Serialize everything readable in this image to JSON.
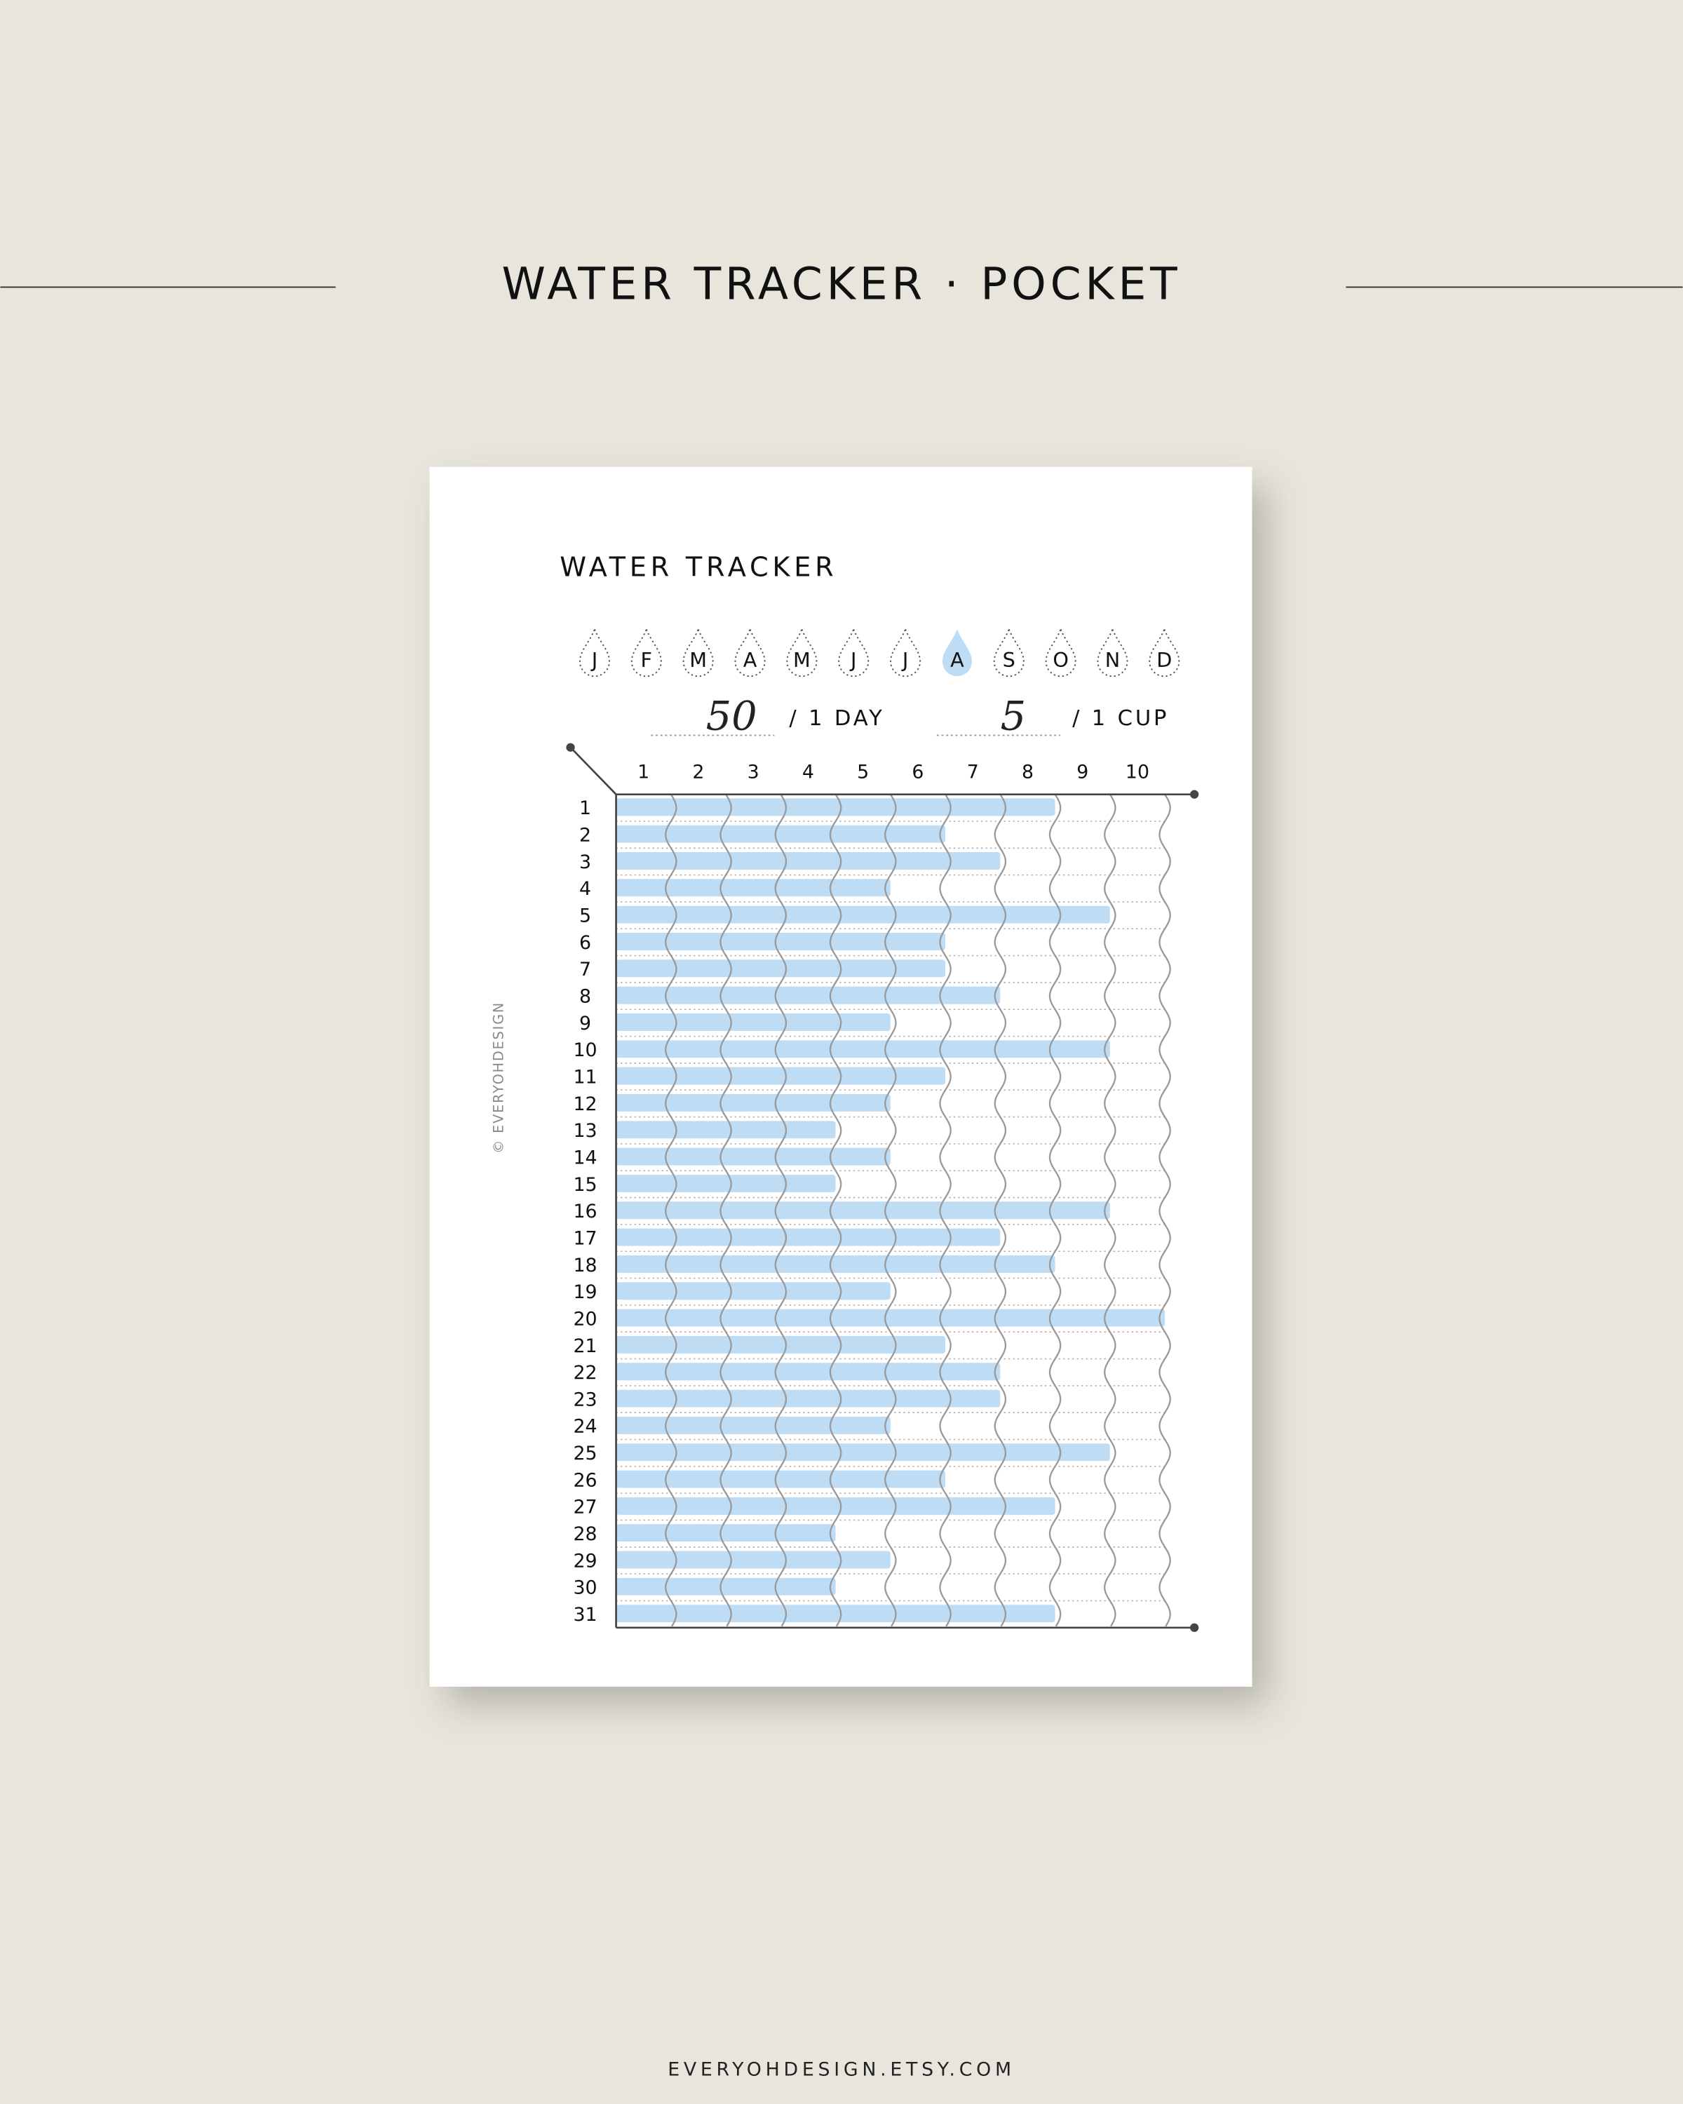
{
  "banner_title": "WATER TRACKER · POCKET",
  "footer": "EVERYOHDESIGN.ETSY.COM",
  "copyright": "© EVERYOHDESIGN",
  "sheet": {
    "title": "WATER TRACKER",
    "months": [
      "J",
      "F",
      "M",
      "A",
      "M",
      "J",
      "J",
      "A",
      "S",
      "O",
      "N",
      "D"
    ],
    "highlight_month": 7,
    "daily_goal": "50",
    "daily_goal_unit": "/ 1 DAY",
    "cup_size": "5",
    "cup_size_unit": "/ 1 CUP"
  },
  "chart_data": {
    "type": "bar",
    "categories": [
      "1",
      "2",
      "3",
      "4",
      "5",
      "6",
      "7",
      "8",
      "9",
      "10",
      "11",
      "12",
      "13",
      "14",
      "15",
      "16",
      "17",
      "18",
      "19",
      "20",
      "21",
      "22",
      "23",
      "24",
      "25",
      "26",
      "27",
      "28",
      "29",
      "30",
      "31"
    ],
    "values": [
      8,
      6,
      7,
      5,
      9,
      6,
      6,
      7,
      5,
      9,
      6,
      5,
      4,
      5,
      4,
      9,
      7,
      8,
      5,
      10,
      6,
      7,
      7,
      5,
      9,
      6,
      8,
      4,
      5,
      4,
      8
    ],
    "color": "#bfdcf5",
    "xlim": [
      0,
      10
    ],
    "xticks": [
      1,
      2,
      3,
      4,
      5,
      6,
      7,
      8,
      9,
      10
    ]
  }
}
